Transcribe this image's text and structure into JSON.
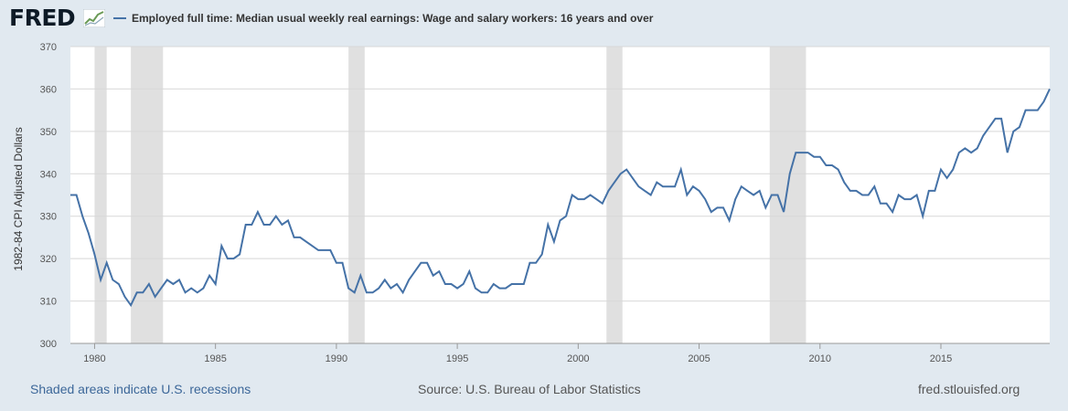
{
  "header": {
    "logo_text": "FRED",
    "logo_icon": "fred-graph-icon",
    "legend_label": "Employed full time: Median usual weekly real earnings: Wage and salary workers: 16 years and over"
  },
  "footer": {
    "recessions_note": "Shaded areas indicate U.S. recessions",
    "source": "Source: U.S. Bureau of Labor Statistics",
    "site": "fred.stlouisfed.org"
  },
  "colors": {
    "background": "#e1e9f0",
    "plot_background": "#ffffff",
    "series": "#4572a7",
    "recession": "#e0e0e0",
    "footer_link": "#3c6799"
  },
  "chart_data": {
    "type": "line",
    "title": "",
    "ylabel": "1982-84 CPI Adjusted Dollars",
    "xlabel": "",
    "xlim": [
      1979.0,
      2019.5
    ],
    "ylim": [
      300,
      370
    ],
    "y_ticks": [
      300,
      310,
      320,
      330,
      340,
      350,
      360,
      370
    ],
    "x_ticks": [
      1980,
      1985,
      1990,
      1995,
      2000,
      2005,
      2010,
      2015
    ],
    "grid": "horizontal",
    "recessions": [
      [
        1980.0,
        1980.5
      ],
      [
        1981.5,
        1982.83
      ],
      [
        1990.5,
        1991.17
      ],
      [
        2001.17,
        2001.83
      ],
      [
        2007.92,
        2009.42
      ]
    ],
    "series": [
      {
        "name": "Employed full time: Median usual weekly real earnings: Wage and salary workers: 16 years and over",
        "x": [
          1979.0,
          1979.25,
          1979.5,
          1979.75,
          1980.0,
          1980.25,
          1980.5,
          1980.75,
          1981.0,
          1981.25,
          1981.5,
          1981.75,
          1982.0,
          1982.25,
          1982.5,
          1982.75,
          1983.0,
          1983.25,
          1983.5,
          1983.75,
          1984.0,
          1984.25,
          1984.5,
          1984.75,
          1985.0,
          1985.25,
          1985.5,
          1985.75,
          1986.0,
          1986.25,
          1986.5,
          1986.75,
          1987.0,
          1987.25,
          1987.5,
          1987.75,
          1988.0,
          1988.25,
          1988.5,
          1988.75,
          1989.0,
          1989.25,
          1989.5,
          1989.75,
          1990.0,
          1990.25,
          1990.5,
          1990.75,
          1991.0,
          1991.25,
          1991.5,
          1991.75,
          1992.0,
          1992.25,
          1992.5,
          1992.75,
          1993.0,
          1993.25,
          1993.5,
          1993.75,
          1994.0,
          1994.25,
          1994.5,
          1994.75,
          1995.0,
          1995.25,
          1995.5,
          1995.75,
          1996.0,
          1996.25,
          1996.5,
          1996.75,
          1997.0,
          1997.25,
          1997.5,
          1997.75,
          1998.0,
          1998.25,
          1998.5,
          1998.75,
          1999.0,
          1999.25,
          1999.5,
          1999.75,
          2000.0,
          2000.25,
          2000.5,
          2000.75,
          2001.0,
          2001.25,
          2001.5,
          2001.75,
          2002.0,
          2002.25,
          2002.5,
          2002.75,
          2003.0,
          2003.25,
          2003.5,
          2003.75,
          2004.0,
          2004.25,
          2004.5,
          2004.75,
          2005.0,
          2005.25,
          2005.5,
          2005.75,
          2006.0,
          2006.25,
          2006.5,
          2006.75,
          2007.0,
          2007.25,
          2007.5,
          2007.75,
          2008.0,
          2008.25,
          2008.5,
          2008.75,
          2009.0,
          2009.25,
          2009.5,
          2009.75,
          2010.0,
          2010.25,
          2010.5,
          2010.75,
          2011.0,
          2011.25,
          2011.5,
          2011.75,
          2012.0,
          2012.25,
          2012.5,
          2012.75,
          2013.0,
          2013.25,
          2013.5,
          2013.75,
          2014.0,
          2014.25,
          2014.5,
          2014.75,
          2015.0,
          2015.25,
          2015.5,
          2015.75,
          2016.0,
          2016.25,
          2016.5,
          2016.75,
          2017.0,
          2017.25,
          2017.5,
          2017.75,
          2018.0,
          2018.25,
          2018.5,
          2018.75,
          2019.0,
          2019.25,
          2019.5
        ],
        "values": [
          335,
          335,
          330,
          326,
          321,
          315,
          319,
          315,
          314,
          311,
          309,
          312,
          312,
          314,
          311,
          313,
          315,
          314,
          315,
          312,
          313,
          312,
          313,
          316,
          314,
          323,
          320,
          320,
          321,
          328,
          328,
          331,
          328,
          328,
          330,
          328,
          329,
          325,
          325,
          324,
          323,
          322,
          322,
          322,
          319,
          319,
          313,
          312,
          316,
          312,
          312,
          313,
          315,
          313,
          314,
          312,
          315,
          317,
          319,
          319,
          316,
          317,
          314,
          314,
          313,
          314,
          317,
          313,
          312,
          312,
          314,
          313,
          313,
          314,
          314,
          314,
          319,
          319,
          321,
          328,
          324,
          329,
          330,
          335,
          334,
          334,
          335,
          334,
          333,
          336,
          338,
          340,
          341,
          339,
          337,
          336,
          335,
          338,
          337,
          337,
          337,
          341,
          335,
          337,
          336,
          334,
          331,
          332,
          332,
          329,
          334,
          337,
          336,
          335,
          336,
          332,
          335,
          335,
          331,
          340,
          345,
          345,
          345,
          344,
          344,
          342,
          342,
          341,
          338,
          336,
          336,
          335,
          335,
          337,
          333,
          333,
          331,
          335,
          334,
          334,
          335,
          330,
          336,
          336,
          341,
          339,
          341,
          345,
          346,
          345,
          346,
          349,
          351,
          353,
          353,
          345,
          350,
          351,
          355,
          355,
          355,
          357,
          360
        ]
      }
    ]
  }
}
